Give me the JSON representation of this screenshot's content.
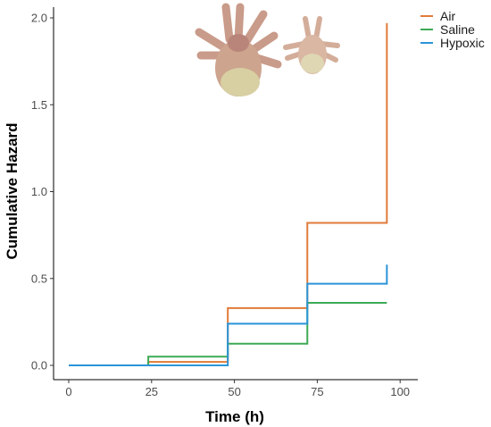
{
  "chart_data": {
    "type": "line",
    "step": true,
    "xlabel": "Time (h)",
    "ylabel": "Cumulative Hazard",
    "xlim": [
      0,
      100
    ],
    "ylim": [
      0,
      2.0
    ],
    "xticks": [
      0,
      25,
      50,
      75,
      100
    ],
    "yticks": [
      0.0,
      0.5,
      1.0,
      1.5,
      2.0
    ],
    "xtick_labels": [
      "0",
      "25",
      "50",
      "75",
      "100"
    ],
    "ytick_labels": [
      "0.0",
      "0.5",
      "1.0",
      "1.5",
      "2.0"
    ],
    "grid": false,
    "legend": "top-right",
    "series": [
      {
        "name": "Air",
        "color": "#E07B39",
        "x": [
          0,
          24,
          48,
          72,
          96
        ],
        "y": [
          0.0,
          0.02,
          0.33,
          0.82,
          1.97
        ]
      },
      {
        "name": "Saline",
        "color": "#3DAA55",
        "x": [
          0,
          24,
          48,
          72,
          96
        ],
        "y": [
          0.0,
          0.05,
          0.125,
          0.36,
          0.36
        ]
      },
      {
        "name": "Hypoxic",
        "color": "#2B94D8",
        "x": [
          0,
          48,
          72,
          96
        ],
        "y": [
          0.0,
          0.24,
          0.47,
          0.58
        ]
      }
    ],
    "decorations": [
      "mite-icon-large",
      "mite-icon-small"
    ]
  }
}
